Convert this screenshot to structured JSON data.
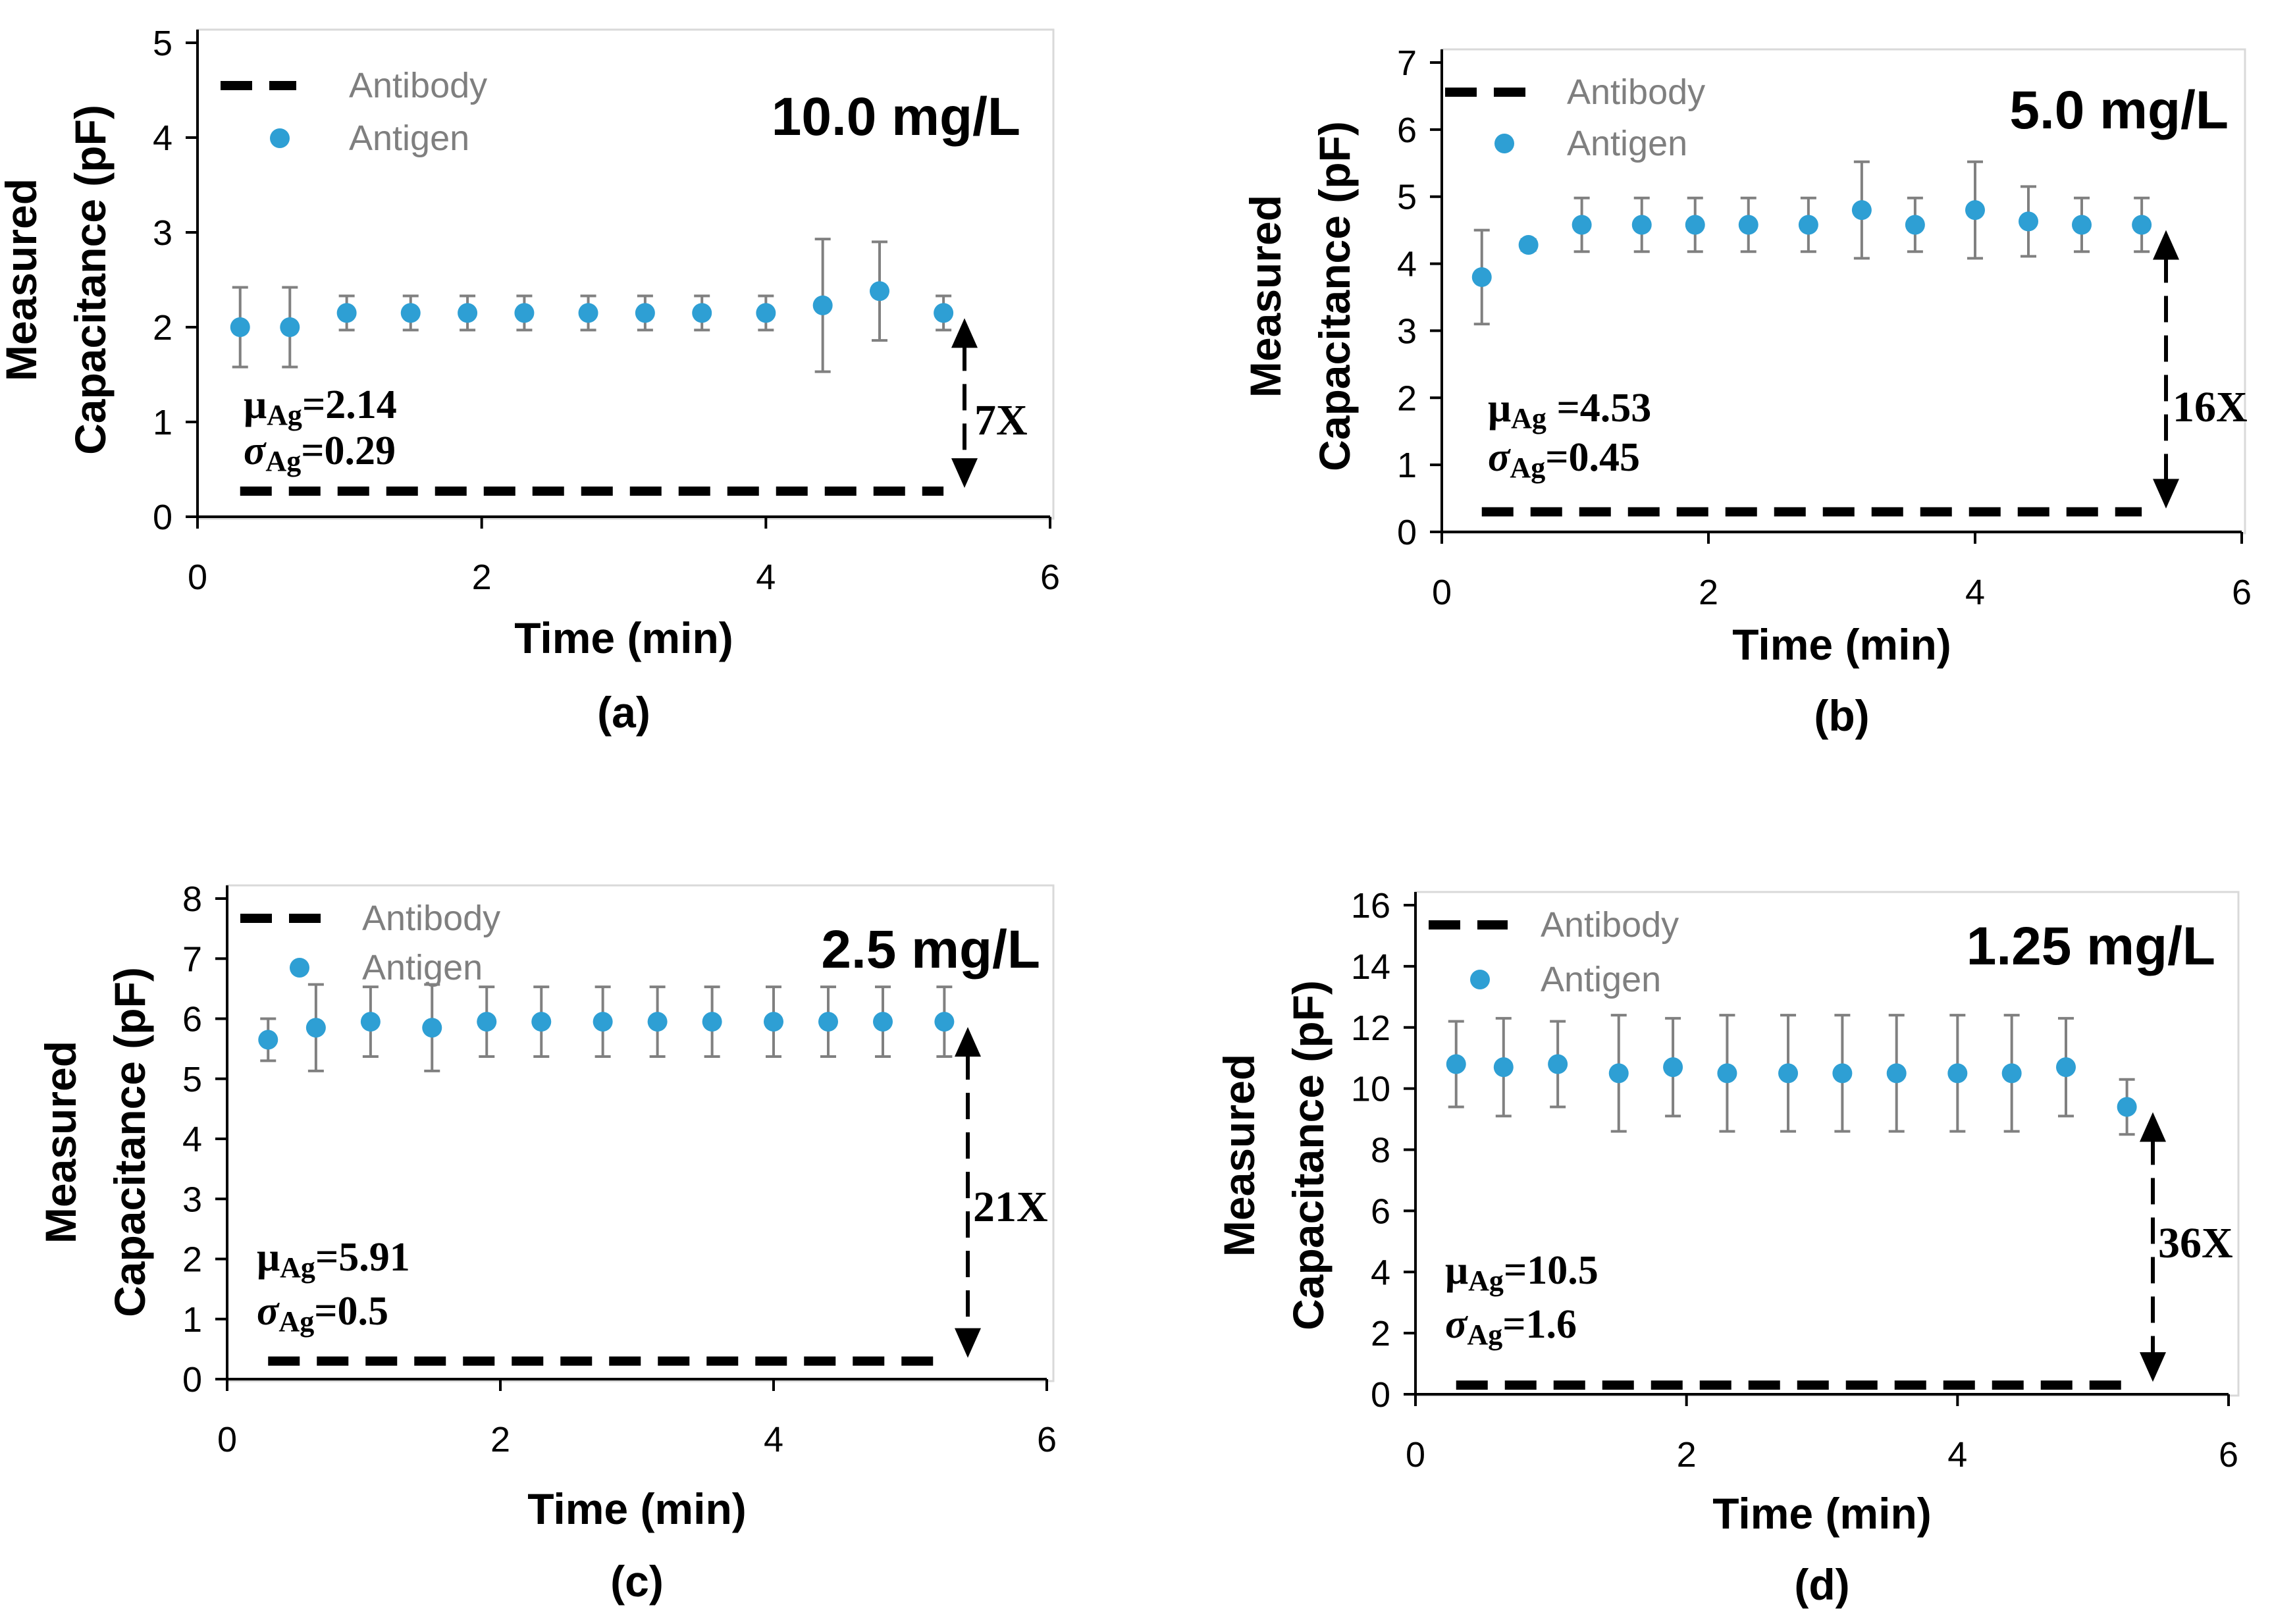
{
  "chart_data": [
    {
      "type": "scatter",
      "panel_label": "(a)",
      "concentration": "10.0 mg/L",
      "xlabel": "Time (min)",
      "ylabel_line1": "Measured",
      "ylabel_line2": "Capacitance (pF)",
      "xlim": [
        0,
        6
      ],
      "ylim": [
        0,
        5
      ],
      "xticks": [
        0,
        2,
        4,
        6
      ],
      "yticks": [
        0,
        1,
        2,
        3,
        4,
        5
      ],
      "legend": [
        "Antibody",
        "Antigen"
      ],
      "antibody": {
        "name": "Antibody",
        "value": 0.27,
        "x_range": [
          0.3,
          5.25
        ]
      },
      "antigen": {
        "name": "Antigen",
        "x": [
          0.3,
          0.65,
          1.05,
          1.5,
          1.9,
          2.3,
          2.75,
          3.15,
          3.55,
          4.0,
          4.4,
          4.8,
          5.25
        ],
        "y": [
          2.0,
          2.0,
          2.15,
          2.15,
          2.15,
          2.15,
          2.15,
          2.15,
          2.15,
          2.15,
          2.23,
          2.38,
          2.15
        ],
        "err": [
          0.42,
          0.42,
          0.18,
          0.18,
          0.18,
          0.18,
          0.18,
          0.18,
          0.18,
          0.18,
          0.7,
          0.52,
          0.18
        ]
      },
      "stats": {
        "mu_symbol": "μ",
        "mu_sub": "Ag",
        "mu_value": "=2.14",
        "sigma_symbol": "σ",
        "sigma_sub": "Ag",
        "sigma_value": "=0.29"
      },
      "ratio": "7X"
    },
    {
      "type": "scatter",
      "panel_label": "(b)",
      "concentration": "5.0 mg/L",
      "xlabel": "Time (min)",
      "ylabel_line1": "Measured",
      "ylabel_line2": "Capacitance (pF)",
      "xlim": [
        0,
        6
      ],
      "ylim": [
        0,
        7
      ],
      "xticks": [
        0,
        2,
        4,
        6
      ],
      "yticks": [
        0,
        1,
        2,
        3,
        4,
        5,
        6,
        7
      ],
      "legend": [
        "Antibody",
        "Antigen"
      ],
      "antibody": {
        "name": "Antibody",
        "value": 0.3,
        "x_range": [
          0.3,
          5.25
        ]
      },
      "antigen": {
        "name": "Antigen",
        "x": [
          0.3,
          0.65,
          1.05,
          1.5,
          1.9,
          2.3,
          2.75,
          3.15,
          3.55,
          4.0,
          4.4,
          4.8,
          5.25
        ],
        "y": [
          3.8,
          4.28,
          4.58,
          4.58,
          4.58,
          4.58,
          4.58,
          4.8,
          4.58,
          4.8,
          4.63,
          4.58,
          4.58
        ],
        "err": [
          0.7,
          0.08,
          0.4,
          0.4,
          0.4,
          0.4,
          0.4,
          0.72,
          0.4,
          0.72,
          0.52,
          0.4,
          0.4
        ]
      },
      "stats": {
        "mu_symbol": "μ",
        "mu_sub": "Ag",
        "mu_value": " =4.53",
        "sigma_symbol": "σ",
        "sigma_sub": "Ag",
        "sigma_value": "=0.45"
      },
      "ratio": "16X"
    },
    {
      "type": "scatter",
      "panel_label": "(c)",
      "concentration": "2.5 mg/L",
      "xlabel": "Time (min)",
      "ylabel_line1": "Measured",
      "ylabel_line2": "Capacitance (pF)",
      "xlim": [
        0,
        6
      ],
      "ylim": [
        0,
        8
      ],
      "xticks": [
        0,
        2,
        4,
        6
      ],
      "yticks": [
        0,
        1,
        2,
        3,
        4,
        5,
        6,
        7,
        8
      ],
      "legend": [
        "Antibody",
        "Antigen"
      ],
      "antibody": {
        "name": "Antibody",
        "value": 0.3,
        "x_range": [
          0.3,
          5.25
        ]
      },
      "antigen": {
        "name": "Antigen",
        "x": [
          0.3,
          0.65,
          1.05,
          1.5,
          1.9,
          2.3,
          2.75,
          3.15,
          3.55,
          4.0,
          4.4,
          4.8,
          5.25
        ],
        "y": [
          5.65,
          5.85,
          5.95,
          5.85,
          5.95,
          5.95,
          5.95,
          5.95,
          5.95,
          5.95,
          5.95,
          5.95,
          5.95
        ],
        "err": [
          0.35,
          0.72,
          0.58,
          0.72,
          0.58,
          0.58,
          0.58,
          0.58,
          0.58,
          0.58,
          0.58,
          0.58,
          0.58
        ]
      },
      "stats": {
        "mu_symbol": "μ",
        "mu_sub": "Ag",
        "mu_value": "=5.91",
        "sigma_symbol": "σ",
        "sigma_sub": "Ag",
        "sigma_value": "=0.5"
      },
      "ratio": "21X"
    },
    {
      "type": "scatter",
      "panel_label": "(d)",
      "concentration": "1.25 mg/L",
      "xlabel": "Time (min)",
      "ylabel_line1": "Measured",
      "ylabel_line2": "Capacitance (pF)",
      "xlim": [
        0,
        6
      ],
      "ylim": [
        0,
        16
      ],
      "xticks": [
        0,
        2,
        4,
        6
      ],
      "yticks": [
        0,
        2,
        4,
        6,
        8,
        10,
        12,
        14,
        16
      ],
      "legend": [
        "Antibody",
        "Antigen"
      ],
      "antibody": {
        "name": "Antibody",
        "value": 0.3,
        "x_range": [
          0.3,
          5.25
        ]
      },
      "antigen": {
        "name": "Antigen",
        "x": [
          0.3,
          0.65,
          1.05,
          1.5,
          1.9,
          2.3,
          2.75,
          3.15,
          3.55,
          4.0,
          4.4,
          4.8,
          5.25
        ],
        "y": [
          10.8,
          10.7,
          10.8,
          10.5,
          10.7,
          10.5,
          10.5,
          10.5,
          10.5,
          10.5,
          10.5,
          10.7,
          9.4
        ],
        "err": [
          1.4,
          1.6,
          1.4,
          1.9,
          1.6,
          1.9,
          1.9,
          1.9,
          1.9,
          1.9,
          1.9,
          1.6,
          0.9
        ]
      },
      "stats": {
        "mu_symbol": "μ",
        "mu_sub": "Ag",
        "mu_value": "=10.5",
        "sigma_symbol": "σ",
        "sigma_sub": "Ag",
        "sigma_value": "=1.6"
      },
      "ratio": "36X"
    }
  ]
}
